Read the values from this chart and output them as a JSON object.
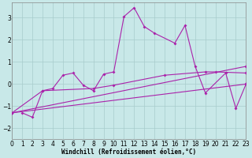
{
  "xlabel": "Windchill (Refroidissement éolien,°C)",
  "xlim": [
    0,
    23
  ],
  "ylim": [
    -2.5,
    3.7
  ],
  "xticks": [
    0,
    1,
    2,
    3,
    4,
    5,
    6,
    7,
    8,
    9,
    10,
    11,
    12,
    13,
    14,
    15,
    16,
    17,
    18,
    19,
    20,
    21,
    22,
    23
  ],
  "yticks": [
    -2,
    -1,
    0,
    1,
    2,
    3
  ],
  "bg": "#c8e8e8",
  "grid_color": "#a8cccc",
  "lc": "#aa22aa",
  "lw": 0.8,
  "ms": 2.0,
  "line1_x": [
    1,
    2,
    3,
    4,
    5,
    6,
    7,
    8,
    9,
    10,
    11,
    12,
    13,
    14,
    16,
    17,
    18,
    19,
    21,
    22,
    23
  ],
  "line1_y": [
    -1.3,
    -1.5,
    -0.3,
    -0.2,
    0.4,
    0.5,
    -0.05,
    -0.3,
    0.45,
    0.55,
    3.05,
    3.45,
    2.6,
    2.3,
    1.85,
    2.65,
    0.8,
    -0.4,
    0.5,
    -1.1,
    0.0
  ],
  "line2_x": [
    0,
    3,
    8,
    10,
    15,
    19,
    20,
    23
  ],
  "line2_y": [
    -1.3,
    -0.3,
    -0.2,
    -0.05,
    0.4,
    0.55,
    0.55,
    0.5
  ],
  "line3_x": [
    0,
    23
  ],
  "line3_y": [
    -1.3,
    0.0
  ],
  "line4_x": [
    0,
    23
  ],
  "line4_y": [
    -1.3,
    0.8
  ]
}
